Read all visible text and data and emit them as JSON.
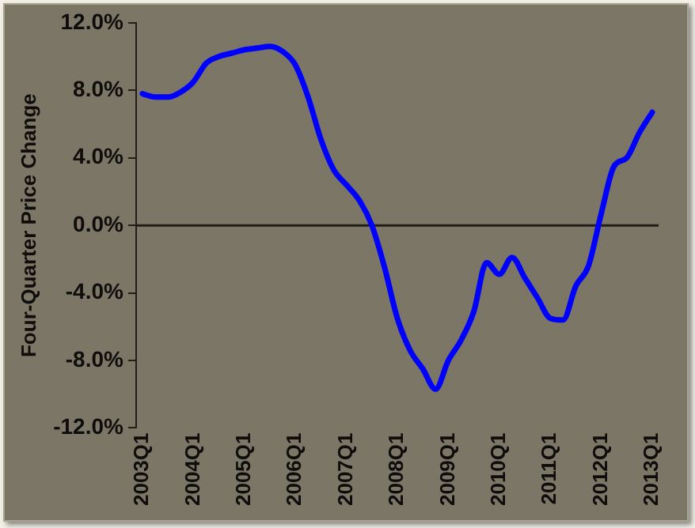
{
  "chart_data": {
    "type": "line",
    "ylabel": "Four-Quarter Price Change",
    "categories": [
      "2003Q1",
      null,
      null,
      null,
      "2004Q1",
      null,
      null,
      null,
      "2005Q1",
      null,
      null,
      null,
      "2006Q1",
      null,
      null,
      null,
      "2007Q1",
      null,
      null,
      null,
      "2008Q1",
      null,
      null,
      null,
      "2009Q1",
      null,
      null,
      null,
      "2010Q1",
      null,
      null,
      null,
      "2011Q1",
      null,
      null,
      null,
      "2012Q1",
      null,
      null,
      null,
      "2013Q1"
    ],
    "series": [
      {
        "color": "#0000ff",
        "values": [
          7.8,
          7.6,
          7.6,
          7.9,
          8.5,
          9.6,
          10.0,
          10.2,
          10.4,
          10.5,
          10.6,
          10.3,
          9.5,
          7.6,
          5.1,
          3.3,
          2.4,
          1.5,
          0.0,
          -2.5,
          -5.5,
          -7.4,
          -8.5,
          -9.7,
          -8.0,
          -6.8,
          -5.1,
          -2.2,
          -2.9,
          -1.9,
          -3.1,
          -4.3,
          -5.5,
          -5.6,
          -3.6,
          -2.4,
          0.7,
          3.5,
          4.0,
          5.5,
          6.7
        ]
      }
    ],
    "ylim": [
      -12,
      12
    ],
    "yticks": [
      {
        "value": -12,
        "label": "-12.0%"
      },
      {
        "value": -8,
        "label": "-8.0%"
      },
      {
        "value": -4,
        "label": "-4.0%"
      },
      {
        "value": 0,
        "label": "0.0%"
      },
      {
        "value": 4,
        "label": "4.0%"
      },
      {
        "value": 8,
        "label": "8.0%"
      },
      {
        "value": 12,
        "label": "12.0%"
      }
    ],
    "ref_lines": [
      {
        "axis": "y",
        "value": 0,
        "color": "#221f1b"
      }
    ],
    "grid": false,
    "legend": false,
    "marker": "none",
    "line_style": "solid"
  }
}
